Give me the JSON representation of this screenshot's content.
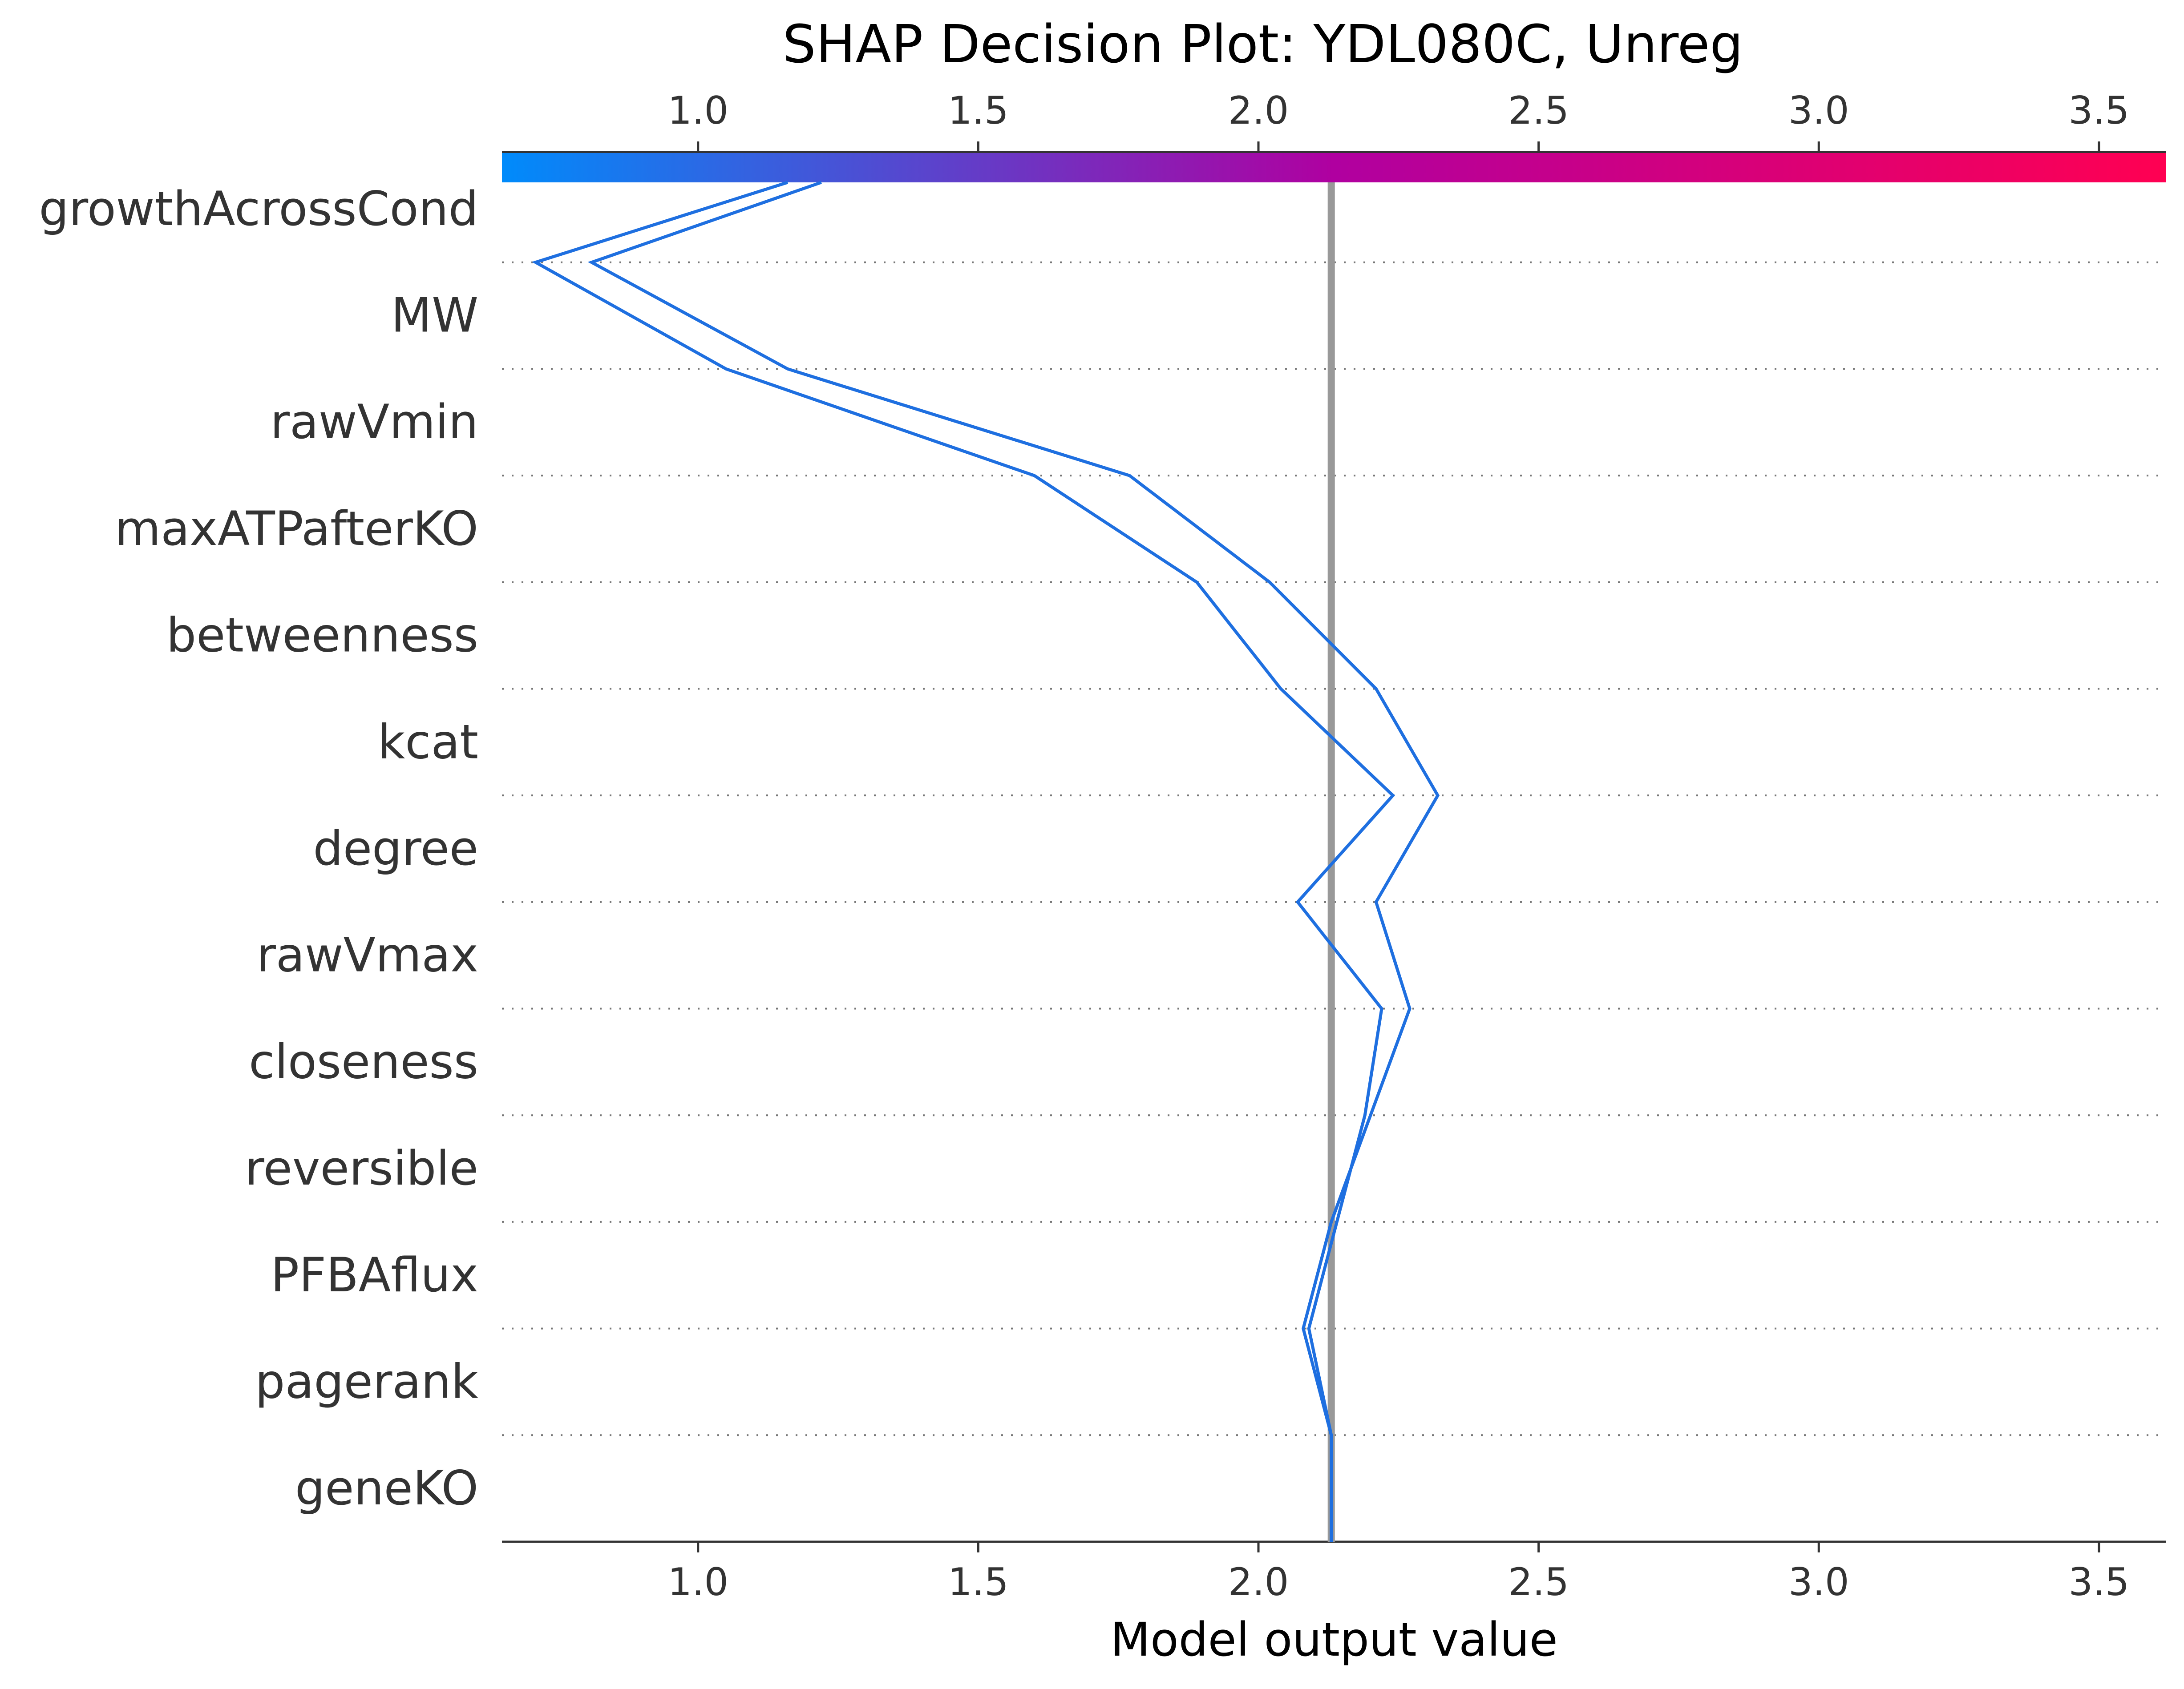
{
  "chart_data": {
    "type": "line",
    "title": "SHAP Decision Plot: YDL080C, Unreg",
    "xlabel": "Model output value",
    "features": [
      "growthAcrossCond",
      "MW",
      "rawVmin",
      "maxATPafterKO",
      "betweenness",
      "kcat",
      "degree",
      "rawVmax",
      "closeness",
      "reversible",
      "PFBAflux",
      "pagerank",
      "geneKO"
    ],
    "xlim": [
      0.65,
      3.62
    ],
    "xticks": [
      1.0,
      1.5,
      2.0,
      2.5,
      3.0,
      3.5
    ],
    "xtick_labels": [
      "1.0",
      "1.5",
      "2.0",
      "2.5",
      "3.0",
      "3.5"
    ],
    "base_value": 2.13,
    "colorbar": {
      "from": "#008bfb",
      "mid": "#b000a0",
      "to": "#ff0052"
    },
    "series": [
      {
        "color": "#1e6fe0",
        "values": [
          1.22,
          0.81,
          1.16,
          1.77,
          2.02,
          2.21,
          2.32,
          2.21,
          2.27,
          2.2,
          2.13,
          2.08,
          2.13
        ]
      },
      {
        "color": "#1e6fe0",
        "values": [
          1.16,
          0.71,
          1.05,
          1.6,
          1.89,
          2.04,
          2.24,
          2.07,
          2.22,
          2.19,
          2.14,
          2.09,
          2.13
        ]
      }
    ]
  }
}
